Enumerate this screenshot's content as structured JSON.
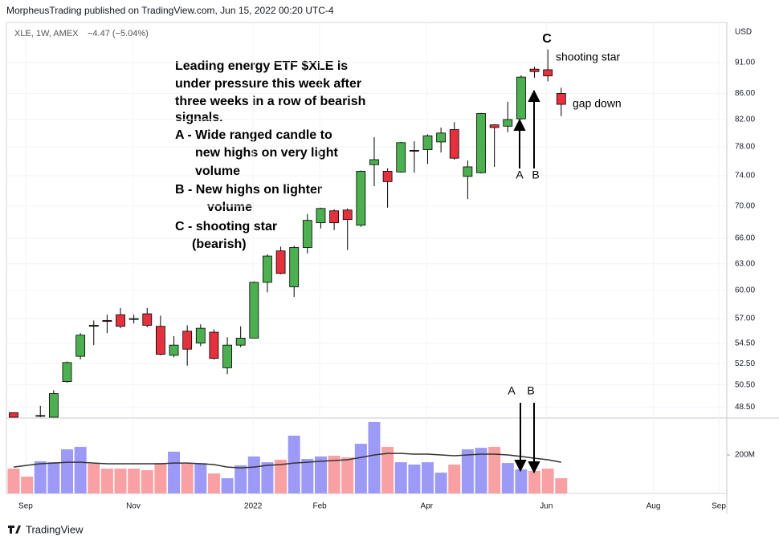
{
  "header": "MorpheusTrading published on TradingView.com, Jun 15, 2022 00:20 UTC-4",
  "footer": "TradingView",
  "chart_data": {
    "type": "candlestick",
    "symbol": "XLE, 1W, AMEX",
    "change": "−4.47 (−5.04%)",
    "currency": "USD",
    "log_scale": true,
    "grid": true,
    "up_color": "#4caf50",
    "down_color": "#e5303d",
    "up_volume_color": "#9d9af7",
    "down_volume_color": "#f9a0a3",
    "ma_color": "#333333",
    "x": [
      0,
      1,
      2,
      3,
      4,
      5,
      6,
      7,
      8,
      9,
      10,
      11,
      12,
      13,
      14,
      15,
      16,
      17,
      18,
      19,
      20,
      21,
      22,
      23,
      24,
      25,
      26,
      27,
      28,
      29,
      30,
      31,
      32,
      33,
      34,
      35,
      36,
      37,
      38,
      39,
      40,
      41
    ],
    "xlim": [
      -0.54,
      53.4
    ],
    "xticks": [
      {
        "value": 0.9,
        "label": "Sep"
      },
      {
        "value": 8.96,
        "label": "Nov"
      },
      {
        "value": 17.93,
        "label": "2022"
      },
      {
        "value": 22.92,
        "label": "Feb"
      },
      {
        "value": 30.93,
        "label": "Apr"
      },
      {
        "value": 39.89,
        "label": "Jun"
      },
      {
        "value": 47.9,
        "label": "Aug"
      },
      {
        "value": 52.8,
        "label": "Sep"
      }
    ],
    "ylim": [
      47.6,
      97.9
    ],
    "yticks": [
      {
        "value": 48.5,
        "label": "48.50"
      },
      {
        "value": 50.5,
        "label": "50.50"
      },
      {
        "value": 52.5,
        "label": "52.50"
      },
      {
        "value": 54.5,
        "label": "54.50"
      },
      {
        "value": 57,
        "label": "57.00"
      },
      {
        "value": 60,
        "label": "60.00"
      },
      {
        "value": 63,
        "label": "63.00"
      },
      {
        "value": 66,
        "label": "66.00"
      },
      {
        "value": 70,
        "label": "70.00"
      },
      {
        "value": 74,
        "label": "74.00"
      },
      {
        "value": 78,
        "label": "78.00"
      },
      {
        "value": 82,
        "label": "82.00"
      },
      {
        "value": 86,
        "label": "86.00"
      },
      {
        "value": 91,
        "label": "91.00"
      }
    ],
    "open": [
      48.0,
      null,
      47.7,
      47.6,
      50.8,
      53.2,
      56.2,
      56.8,
      57.4,
      56.9,
      57.5,
      56.2,
      53.3,
      55.7,
      54.5,
      55.6,
      52.1,
      54.3,
      55.0,
      60.9,
      64.5,
      60.4,
      64.9,
      67.9,
      69.4,
      69.5,
      67.6,
      75.5,
      74.6,
      74.5,
      77.5,
      77.6,
      78.7,
      80.5,
      73.9,
      74.4,
      81.2,
      81.0,
      82.1,
      89.9,
      89.8,
      86.0
    ],
    "high": [
      48.0,
      null,
      48.6,
      50.0,
      52.7,
      55.5,
      56.8,
      57.4,
      58.1,
      57.4,
      58.1,
      57.3,
      55.2,
      56.3,
      56.4,
      55.9,
      55.1,
      56.2,
      61.0,
      64.1,
      65.0,
      65.1,
      69.0,
      69.8,
      69.6,
      69.7,
      74.7,
      79.4,
      75.0,
      78.7,
      78.8,
      79.8,
      80.8,
      81.6,
      76.1,
      83.0,
      81.3,
      84.7,
      88.9,
      90.3,
      93.2,
      86.9
    ],
    "low": [
      47.6,
      null,
      47.6,
      47.6,
      50.7,
      52.9,
      54.3,
      55.5,
      56.0,
      56.5,
      56.1,
      53.3,
      53.1,
      52.3,
      54.2,
      52.9,
      51.5,
      54.1,
      55.0,
      59.8,
      61.8,
      59.3,
      64.2,
      67.2,
      67.0,
      64.6,
      67.4,
      72.6,
      69.8,
      74.4,
      74.4,
      75.6,
      77.2,
      76.2,
      70.9,
      74.3,
      75.2,
      80.1,
      82.0,
      88.5,
      87.9,
      82.5
    ],
    "close": [
      47.6,
      null,
      47.75,
      49.7,
      52.6,
      55.3,
      56.3,
      56.7,
      56.2,
      57.0,
      56.3,
      53.4,
      54.3,
      53.9,
      56.0,
      53.0,
      54.3,
      55.0,
      60.9,
      63.9,
      61.9,
      64.9,
      68.2,
      69.7,
      67.9,
      68.3,
      74.6,
      76.2,
      73.2,
      78.6,
      77.4,
      79.6,
      80.0,
      76.4,
      75.2,
      82.9,
      80.8,
      82.0,
      88.6,
      89.5,
      88.8,
      84.3
    ],
    "volume": [
      129,
      87.5,
      167,
      162,
      229,
      242,
      154,
      129,
      129,
      129,
      121,
      158,
      217,
      154,
      158,
      104,
      79,
      146,
      192,
      162,
      175,
      300,
      179,
      192,
      196,
      187,
      258,
      371,
      242,
      162,
      150,
      162,
      108,
      150,
      229,
      237,
      242,
      158,
      125,
      117,
      129,
      79
    ],
    "volume_up": [
      false,
      false,
      true,
      true,
      true,
      true,
      false,
      false,
      false,
      false,
      false,
      false,
      true,
      false,
      true,
      false,
      true,
      true,
      true,
      true,
      false,
      true,
      true,
      true,
      false,
      false,
      true,
      true,
      false,
      true,
      true,
      true,
      true,
      false,
      true,
      true,
      false,
      true,
      true,
      false,
      false,
      false
    ],
    "volume_ma": [
      137,
      146,
      154,
      158,
      162,
      162,
      158,
      154,
      154,
      154,
      154,
      154,
      158,
      158,
      154,
      150,
      137,
      133,
      137,
      146,
      150,
      158,
      162,
      167,
      171,
      175,
      187,
      200,
      208,
      208,
      204,
      204,
      200,
      196,
      200,
      204,
      204,
      200,
      192,
      183,
      175,
      162
    ],
    "vlim": [
      0,
      387.5
    ],
    "vticks": [
      {
        "value": 200,
        "label": "200M"
      }
    ],
    "annotations": [
      "Leading energy ETF $XLE is",
      "under pressure this week after",
      "three weeks in a row of bearish",
      "signals.",
      "A - Wide ranged candle to",
      "new highs on very  light",
      "volume",
      "B - New highs on lighter",
      "volume",
      "C - shooting star",
      "(bearish)"
    ],
    "labels": {
      "c": "C",
      "shooting_star": "shooting star",
      "gap_down": "gap down",
      "a": "A",
      "b": "B",
      "vol_a": "A",
      "vol_b": "B"
    }
  }
}
